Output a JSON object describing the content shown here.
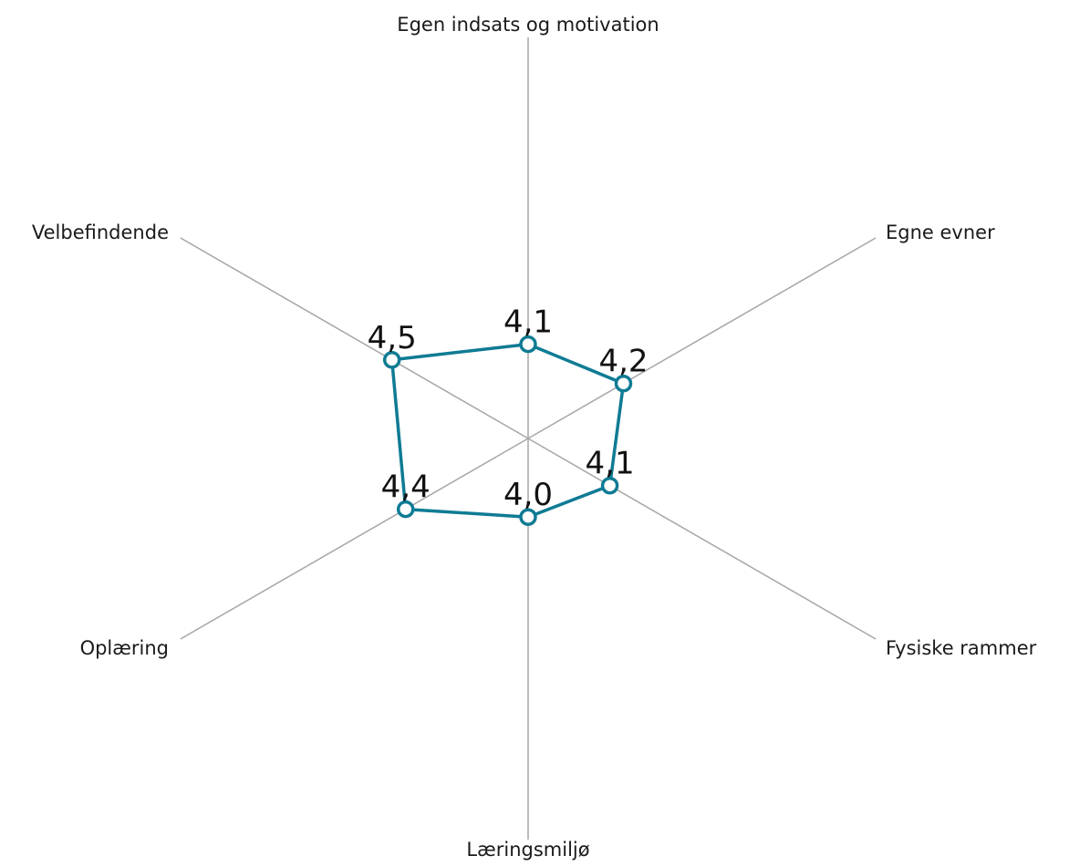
{
  "chart_data": {
    "type": "radar",
    "categories": [
      "Egen indsats og motivation",
      "Egne evner",
      "Fysiske rammer",
      "Læringsmiljø",
      "Oplæring",
      "Velbefindende"
    ],
    "series": [
      {
        "values": [
          4.1,
          4.2,
          4.1,
          4.0,
          4.4,
          4.5
        ],
        "data_labels": [
          "4,1",
          "4,2",
          "4,1",
          "4,0",
          "4,4",
          "4,5"
        ],
        "color": "#0f7b94"
      }
    ],
    "grid": false,
    "legend": "none"
  }
}
